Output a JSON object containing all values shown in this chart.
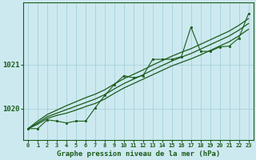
{
  "title": "Graphe pression niveau de la mer (hPa)",
  "background_color": "#cde9f0",
  "grid_color": "#aad4dc",
  "line_color": "#1a5c1a",
  "x_labels": [
    "0",
    "1",
    "2",
    "3",
    "4",
    "5",
    "6",
    "7",
    "8",
    "9",
    "10",
    "11",
    "12",
    "13",
    "14",
    "15",
    "16",
    "17",
    "18",
    "19",
    "20",
    "21",
    "22",
    "23"
  ],
  "y_ticks": [
    1020,
    1021
  ],
  "ylim": [
    1019.3,
    1022.4
  ],
  "xlim": [
    -0.5,
    23.5
  ],
  "series_jagged": [
    1019.55,
    1019.55,
    1019.75,
    1019.72,
    1019.68,
    1019.72,
    1019.72,
    1020.02,
    1020.3,
    1020.55,
    1020.75,
    1020.7,
    1020.75,
    1021.12,
    1021.12,
    1021.12,
    1021.18,
    1021.85,
    1021.3,
    1021.3,
    1021.4,
    1021.42,
    1021.6,
    1022.15
  ],
  "series_smooth1": [
    1019.55,
    1019.65,
    1019.78,
    1019.85,
    1019.9,
    1019.97,
    1020.05,
    1020.12,
    1020.22,
    1020.35,
    1020.47,
    1020.57,
    1020.67,
    1020.77,
    1020.87,
    1020.97,
    1021.05,
    1021.13,
    1021.22,
    1021.32,
    1021.42,
    1021.52,
    1021.65,
    1021.8
  ],
  "series_smooth2": [
    1019.55,
    1019.68,
    1019.82,
    1019.9,
    1019.98,
    1020.06,
    1020.14,
    1020.22,
    1020.32,
    1020.45,
    1020.57,
    1020.67,
    1020.77,
    1020.88,
    1020.98,
    1021.08,
    1021.17,
    1021.25,
    1021.35,
    1021.45,
    1021.55,
    1021.65,
    1021.78,
    1021.93
  ],
  "series_smooth3": [
    1019.55,
    1019.72,
    1019.87,
    1019.97,
    1020.07,
    1020.16,
    1020.25,
    1020.33,
    1020.43,
    1020.56,
    1020.68,
    1020.78,
    1020.88,
    1020.99,
    1021.09,
    1021.19,
    1021.28,
    1021.36,
    1021.46,
    1021.56,
    1021.66,
    1021.76,
    1021.89,
    1022.04
  ]
}
